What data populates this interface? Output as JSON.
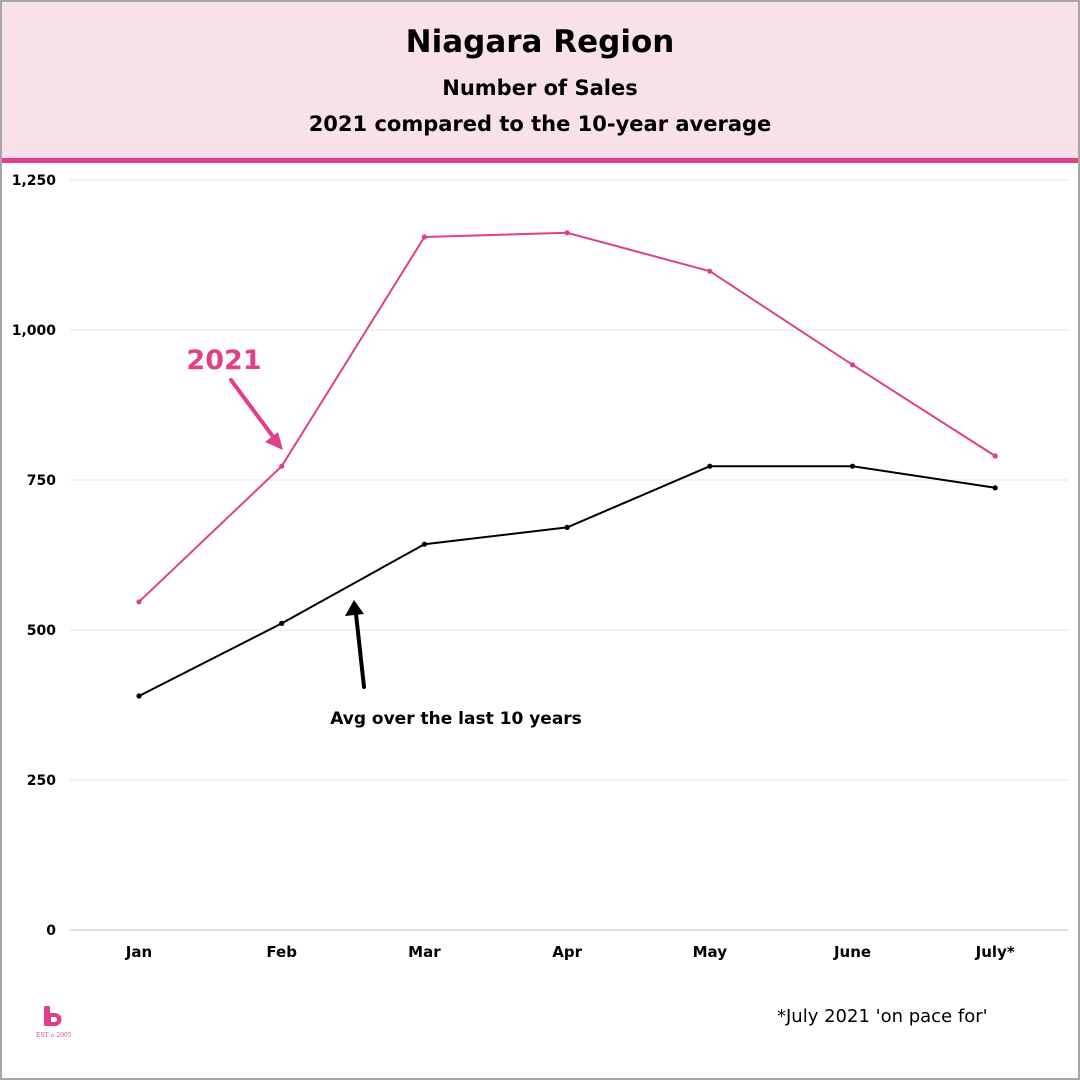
{
  "header": {
    "title": "Niagara Region",
    "subtitle": "Number of Sales",
    "subtitle2": "2021 compared to the 10-year average"
  },
  "chart_data": {
    "type": "line",
    "categories": [
      "Jan",
      "Feb",
      "Mar",
      "Apr",
      "May",
      "June",
      "July*"
    ],
    "ylim": [
      0,
      1250
    ],
    "yticks": [
      0,
      250,
      500,
      750,
      1000,
      1250
    ],
    "ytick_labels": [
      "0",
      "250",
      "500",
      "750",
      "1,000",
      "1,250"
    ],
    "grid": true,
    "series": [
      {
        "name": "2021",
        "color": "#e23f8b",
        "values": [
          547,
          773,
          1155,
          1162,
          1098,
          942,
          790
        ]
      },
      {
        "name": "Avg over the last 10 years",
        "color": "#000000",
        "values": [
          390,
          511,
          643,
          671,
          773,
          773,
          737
        ]
      }
    ]
  },
  "footnote": "*July 2021 'on pace for'",
  "logo": {
    "icon": "brand-b-logo",
    "text": "EST ▫ 2005",
    "color": "#e23f8b"
  }
}
